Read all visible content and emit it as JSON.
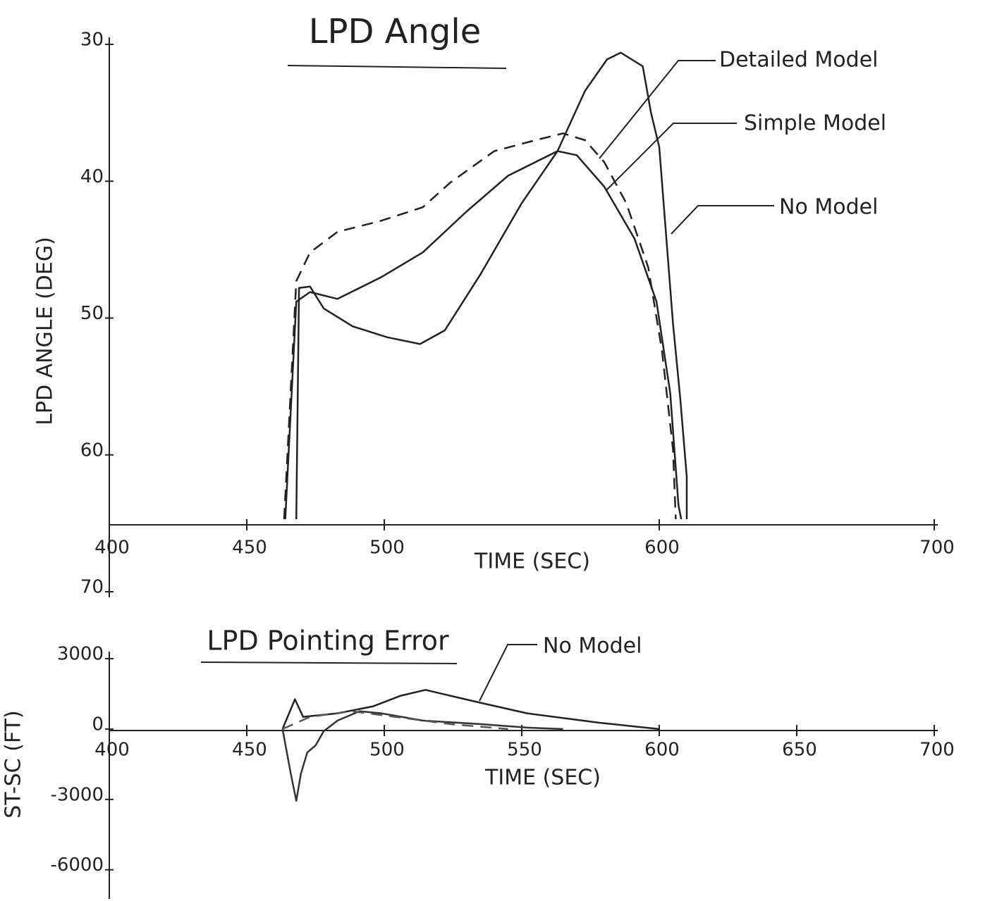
{
  "chart_data": [
    {
      "type": "line",
      "title": "LPD Angle",
      "x_label": "TIME (SEC)",
      "y_label": "LPD ANGLE (DEG)",
      "xlim": [
        400,
        700
      ],
      "xticks": [
        400,
        450,
        500,
        600,
        700
      ],
      "ylim": [
        30,
        70
      ],
      "yticks": [
        30,
        40,
        50,
        60,
        70
      ],
      "y_inverted": true,
      "annotations": [
        "Detailed Model",
        "Simple Model",
        "No Model"
      ],
      "series": [
        {
          "name": "Detailed Model",
          "color": "#222222",
          "dash": true,
          "x": [
            463.6,
            468,
            473,
            483,
            498.7,
            514,
            524,
            540,
            555,
            565,
            573,
            580,
            588,
            596,
            601,
            605,
            606
          ],
          "values": [
            64.7,
            47.3,
            45.2,
            43.7,
            42.9,
            41.9,
            40.1,
            37.8,
            37.0,
            36.5,
            37.0,
            38.6,
            41.6,
            46.3,
            52.4,
            59.6,
            64.7
          ]
        },
        {
          "name": "Simple Model",
          "color": "#222222",
          "dash": false,
          "x": [
            464,
            468,
            473,
            483,
            499,
            514,
            530,
            545,
            563,
            570,
            580,
            591,
            599,
            604,
            607,
            608
          ],
          "values": [
            64.7,
            48.8,
            48.1,
            48.6,
            47.0,
            45.2,
            42.2,
            39.6,
            37.8,
            38.1,
            40.4,
            44.2,
            48.8,
            55.5,
            63.7,
            64.7
          ]
        },
        {
          "name": "No Model",
          "color": "#222222",
          "dash": false,
          "x": [
            468,
            469,
            473,
            478,
            488.5,
            501,
            513,
            522,
            535,
            550,
            563,
            573,
            581,
            586,
            594,
            597,
            600,
            602.6,
            605,
            607.7,
            610,
            610
          ],
          "values": [
            64.7,
            47.8,
            47.7,
            49.3,
            50.6,
            51.4,
            51.9,
            50.9,
            46.8,
            41.6,
            37.8,
            33.4,
            31.1,
            30.6,
            31.6,
            35.0,
            37.5,
            44.2,
            50.4,
            56.0,
            61.6,
            64.7
          ]
        }
      ]
    },
    {
      "type": "line",
      "title": "LPD Pointing Error",
      "x_label": "TIME (SEC)",
      "y_label": "ST-SC (FT)",
      "xlim": [
        400,
        700
      ],
      "xticks": [
        400,
        450,
        500,
        550,
        600,
        650,
        700
      ],
      "ylim": [
        -7000,
        3000
      ],
      "yticks": [
        3000,
        0,
        -3000,
        -6000
      ],
      "y_inverted": false,
      "annotations": [
        "No Model"
      ],
      "series": [
        {
          "name": "No Model",
          "color": "#222222",
          "dash": false,
          "x": [
            463,
            467.5,
            470.5,
            483,
            496,
            506,
            515,
            524,
            535,
            552,
            578,
            600
          ],
          "values": [
            0,
            1270,
            520,
            670,
            970,
            1420,
            1670,
            1420,
            1120,
            670,
            270,
            0
          ]
        },
        {
          "color": "#333333",
          "dash": false,
          "x": [
            463,
            466,
            468,
            469.7,
            472,
            475,
            478,
            483,
            491,
            499,
            514,
            535,
            552,
            565
          ],
          "values": [
            0,
            -1900,
            -3060,
            -1900,
            -1000,
            -700,
            -90,
            360,
            760,
            670,
            360,
            210,
            60,
            0
          ]
        },
        {
          "color": "#555555",
          "dash": true,
          "x": [
            463,
            473,
            488,
            504,
            524,
            545
          ],
          "values": [
            0,
            520,
            760,
            520,
            210,
            0
          ]
        }
      ]
    }
  ]
}
